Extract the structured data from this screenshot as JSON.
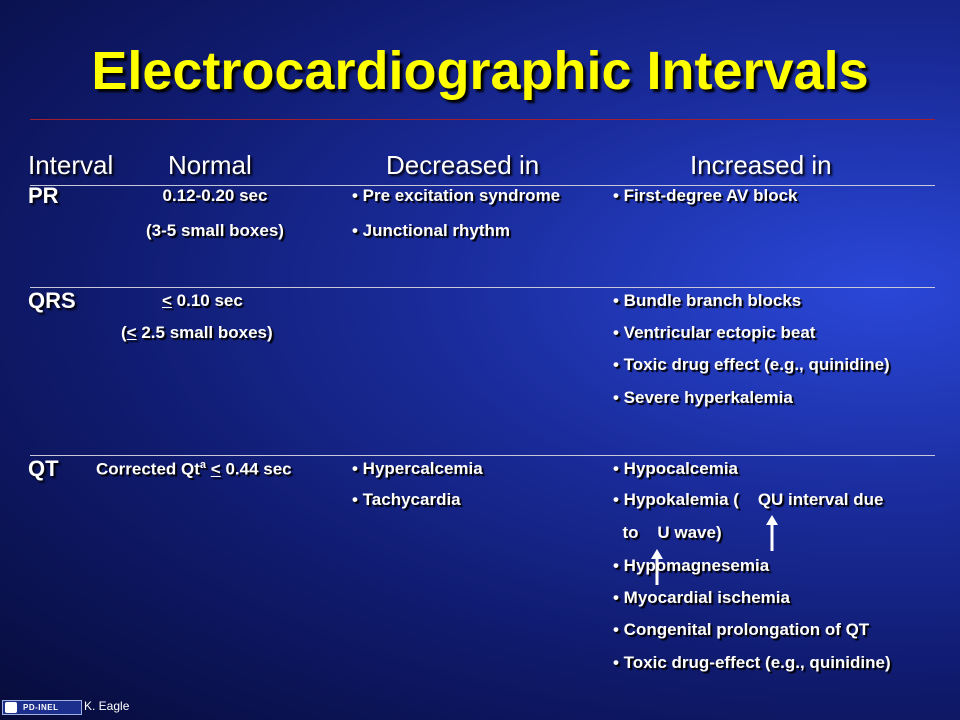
{
  "title": "Electrocardiographic Intervals",
  "headers": {
    "interval": "Interval",
    "normal": "Normal",
    "decreased": "Decreased in",
    "increased": "Increased in"
  },
  "rows": {
    "pr": {
      "label": "PR",
      "normal_1": "0.12-0.20 sec",
      "normal_2": "(3-5 small boxes)",
      "decreased": [
        "• Pre excitation syndrome",
        "• Junctional rhythm"
      ],
      "increased": [
        "• First-degree AV block"
      ]
    },
    "qrs": {
      "label": "QRS",
      "normal_1_sym": "<",
      "normal_1_rest": " 0.10 sec",
      "normal_2_open": "(",
      "normal_2_sym": "<",
      "normal_2_rest": " 2.5 small boxes)",
      "increased": [
        "• Bundle branch blocks",
        "• Ventricular ectopic beat",
        "• Toxic drug effect (e.g., quinidine)",
        "• Severe hyperkalemia"
      ]
    },
    "qt": {
      "label": "QT",
      "normal_pre": "Corrected Qt",
      "normal_sup": "a",
      "normal_sym": "<",
      "normal_rest": " 0.44 sec",
      "decreased": [
        "• Hypercalcemia",
        "• Tachycardia"
      ],
      "increased": [
        "• Hypocalcemia",
        "• Hypokalemia (    QU interval due",
        "  to    U wave)",
        "• Hypomagnesemia",
        "• Myocardial ischemia",
        "• Congenital prolongation of QT",
        "• Toxic drug-effect (e.g., quinidine)"
      ]
    }
  },
  "footer": {
    "logo_text": "PD-INEL",
    "credit": "K. Eagle"
  },
  "colors": {
    "title": "#ffff00",
    "text": "#ffffff",
    "background": "#1a2c9c"
  }
}
